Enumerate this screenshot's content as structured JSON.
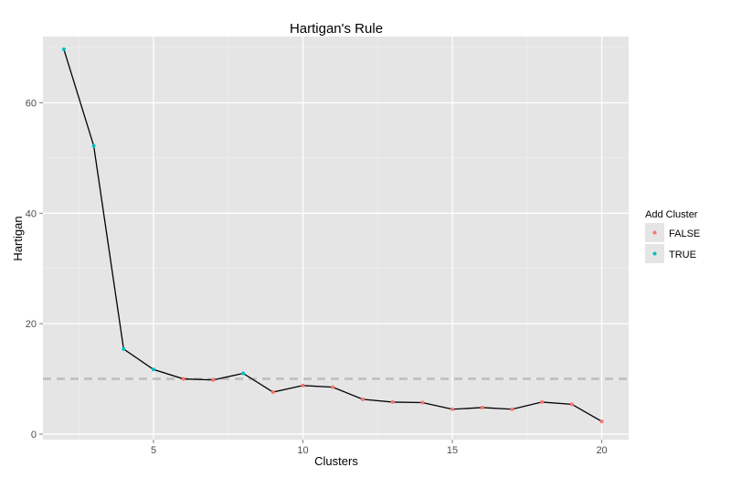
{
  "chart_data": {
    "type": "line",
    "title": "Hartigan's Rule",
    "xlabel": "Clusters",
    "ylabel": "Hartigan",
    "xlim": [
      1.3,
      20.9
    ],
    "ylim": [
      -1,
      72
    ],
    "x_ticks": [
      5,
      10,
      15,
      20
    ],
    "y_ticks": [
      0,
      20,
      40,
      60
    ],
    "grid": true,
    "reference_line": {
      "y": 10,
      "style": "dashed",
      "color": "#bdbdbd"
    },
    "legend": {
      "title": "Add Cluster",
      "placement": "right",
      "entries": [
        {
          "label": "FALSE",
          "color": "#f8766d"
        },
        {
          "label": "TRUE",
          "color": "#00bfc4"
        }
      ]
    },
    "series": [
      {
        "x": [
          2,
          3,
          4,
          5,
          6,
          7,
          8,
          9,
          10,
          11,
          12,
          13,
          14,
          15,
          16,
          17,
          18,
          19,
          20
        ],
        "y": [
          69.7,
          52.2,
          15.4,
          11.7,
          10.0,
          9.8,
          11.0,
          7.6,
          8.8,
          8.5,
          6.3,
          5.8,
          5.7,
          4.5,
          4.8,
          4.5,
          5.8,
          5.4,
          2.3
        ],
        "add_cluster": [
          true,
          true,
          true,
          true,
          false,
          false,
          true,
          false,
          false,
          false,
          false,
          false,
          false,
          false,
          false,
          false,
          false,
          false,
          false
        ],
        "line_color": "#000000"
      }
    ]
  }
}
